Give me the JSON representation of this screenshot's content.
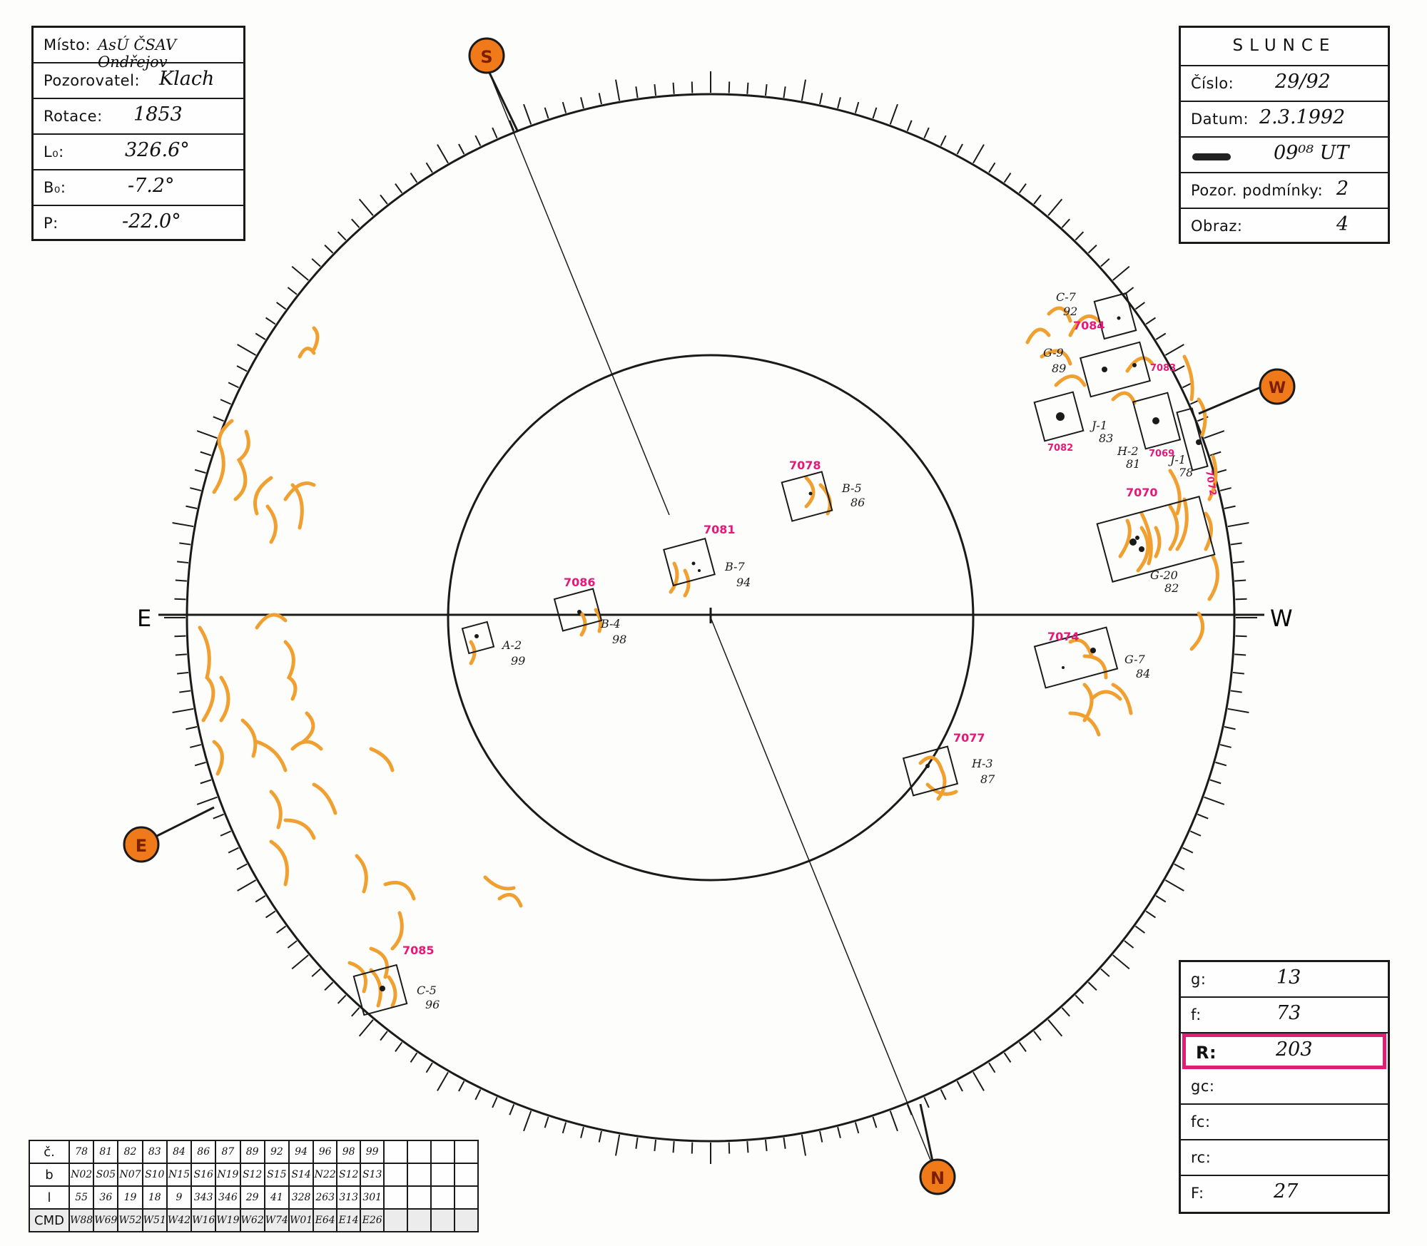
{
  "info_left": {
    "misto_label": "Místo:",
    "misto_value": "AsÚ ČSAV Ondřejov",
    "pozorovatel_label": "Pozorovatel:",
    "pozorovatel_value": "Klach",
    "rotace_label": "Rotace:",
    "rotace_value": "1853",
    "l0_label": "L₀:",
    "l0_value": "326.6°",
    "b0_label": "B₀:",
    "b0_value": "-7.2°",
    "p_label": "P:",
    "p_value": "-22.0°"
  },
  "info_right": {
    "title": "SLUNCE",
    "cislo_label": "Číslo:",
    "cislo_value": "29/92",
    "datum_label": "Datum:",
    "datum_value": "2.3.1992",
    "time_value": "09⁰⁸ UT",
    "podminky_label": "Pozor. podmínky:",
    "podminky_value": "2",
    "obraz_label": "Obraz:",
    "obraz_value": "4"
  },
  "results": {
    "g_label": "g:",
    "g_value": "13",
    "f_label": "f:",
    "f_value": "73",
    "r_label": "R:",
    "r_value": "203",
    "gc_label": "gc:",
    "gc_value": "",
    "fc_label": "fc:",
    "fc_value": "",
    "rc_label": "rc:",
    "rc_value": "",
    "F_label": "F:",
    "F_value": "27"
  },
  "directions": {
    "east": "E",
    "west": "W",
    "marker_s": "S",
    "marker_w": "W",
    "marker_e": "E",
    "marker_n": "N"
  },
  "groups": [
    {
      "region": "7081",
      "code": "B-7",
      "num": "94"
    },
    {
      "region": "7086",
      "code": "B-4",
      "num": "98"
    },
    {
      "region": "",
      "code": "A-2",
      "num": "99"
    },
    {
      "region": "7078",
      "code": "B-5",
      "num": "86"
    },
    {
      "region": "7077",
      "code": "H-3",
      "num": "87"
    },
    {
      "region": "7074",
      "code": "G-7",
      "num": "84"
    },
    {
      "region": "7070",
      "code": "G-20",
      "num": "82"
    },
    {
      "region": "7085",
      "code": "C-5",
      "num": "96"
    },
    {
      "region": "7084",
      "code": "C-7",
      "num": "92"
    },
    {
      "region": "7083",
      "code": "G-9",
      "num": "89"
    },
    {
      "region": "7082",
      "code": "J-1",
      "num": "83"
    },
    {
      "region": "7069",
      "code": "H-2",
      "num": "81"
    },
    {
      "region": "7072",
      "code": "J-1",
      "num": "78"
    }
  ],
  "table": {
    "row_labels": [
      "č.",
      "b",
      "l",
      "CMD"
    ],
    "c": [
      "78",
      "81",
      "82",
      "83",
      "84",
      "86",
      "87",
      "89",
      "92",
      "94",
      "96",
      "98",
      "99",
      "",
      "",
      "",
      ""
    ],
    "b": [
      "N02",
      "S05",
      "N07",
      "S10",
      "N15",
      "S16",
      "N19",
      "S12",
      "S15",
      "S14",
      "N22",
      "S12",
      "S13",
      "",
      "",
      "",
      ""
    ],
    "l": [
      "55",
      "36",
      "19",
      "18",
      "9",
      "343",
      "346",
      "29",
      "41",
      "328",
      "263",
      "313",
      "301",
      "",
      "",
      "",
      ""
    ],
    "cmd": [
      "W88",
      "W69",
      "W52",
      "W51",
      "W42",
      "W16",
      "W19",
      "W62",
      "W74",
      "W01",
      "E64",
      "E14",
      "E26",
      "",
      "",
      "",
      ""
    ]
  },
  "colors": {
    "ink": "#1a1a1a",
    "faculae": "#f0a030",
    "region_label": "#e5197a",
    "marker_fill": "#f07a1a",
    "r_box": "#e01e74"
  }
}
